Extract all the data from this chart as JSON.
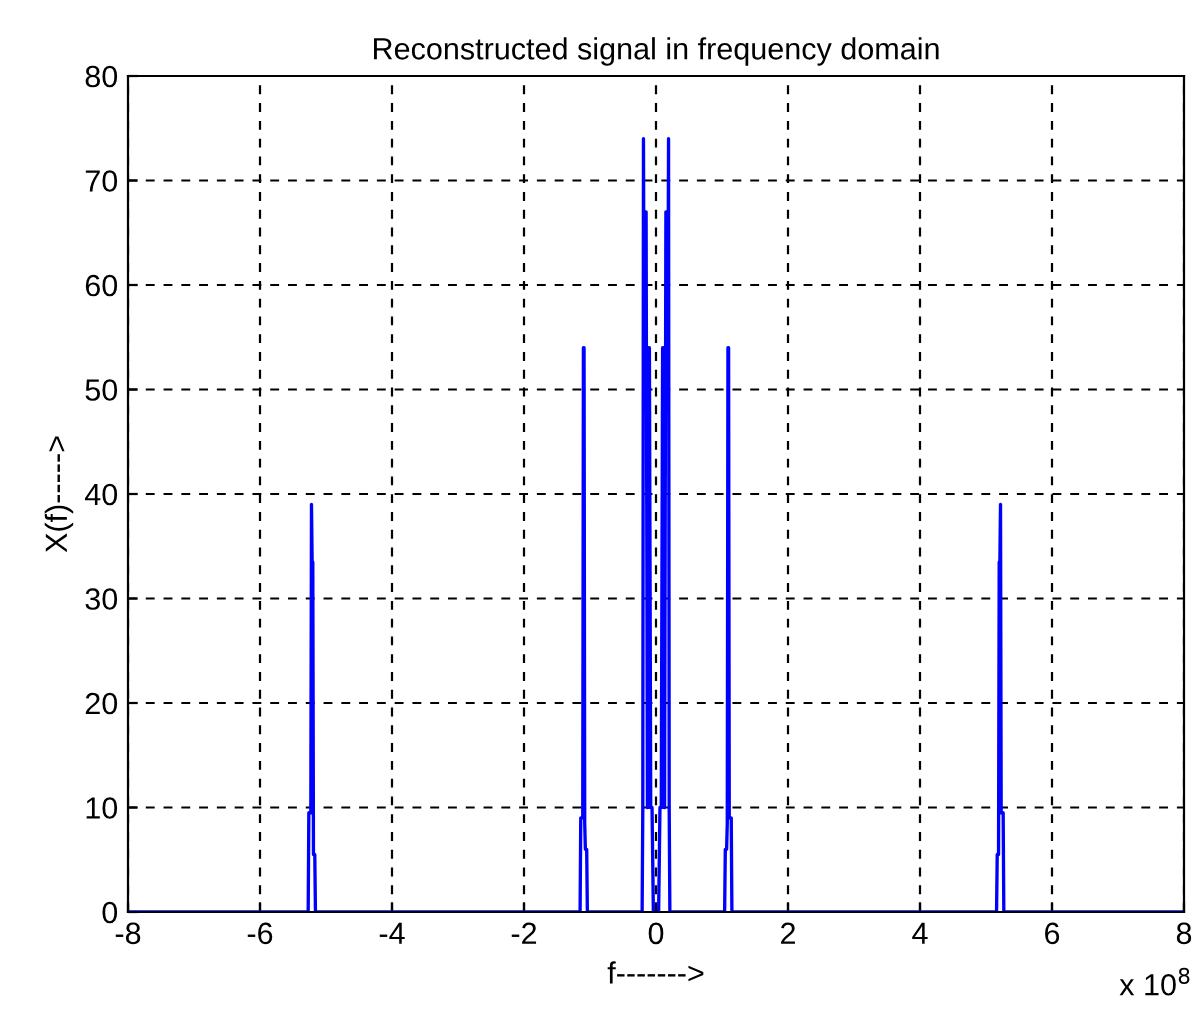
{
  "chart_data": {
    "type": "line",
    "title": "Reconstructed signal in frequency domain",
    "xlabel": "f------->",
    "ylabel": "X(f)----->",
    "annotations": [
      "x 10$^{8}$"
    ],
    "series": [
      {
        "color": "#0000ff",
        "x": [
          -8,
          -5.27,
          -5.26,
          -5.23,
          -5.22,
          -5.21,
          -5.2,
          -5.19,
          -5.17,
          -5.16,
          -1.15,
          -1.14,
          -1.11,
          -1.1,
          -1.09,
          -1.08,
          -1.07,
          -1.05,
          -1.04,
          -0.21,
          -0.2,
          -0.19,
          -0.18,
          -0.17,
          -0.16,
          -0.15,
          -0.13,
          -0.12,
          -0.11,
          -0.1,
          -0.08,
          -0.06,
          -0.04,
          0.04,
          0.06,
          0.08,
          0.1,
          0.11,
          0.12,
          0.13,
          0.15,
          0.16,
          0.17,
          0.18,
          0.19,
          0.2,
          0.21,
          1.04,
          1.05,
          1.07,
          1.08,
          1.09,
          1.1,
          1.11,
          1.14,
          1.15,
          5.16,
          5.17,
          5.19,
          5.2,
          5.21,
          5.22,
          5.23,
          5.26,
          5.27,
          8
        ],
        "values": [
          0,
          0,
          9.5,
          9.5,
          39,
          33.5,
          33.5,
          5.5,
          5.5,
          0,
          0,
          9,
          9,
          54,
          54,
          8.5,
          6,
          6,
          0,
          0,
          10,
          74,
          54,
          54,
          67,
          67,
          10,
          10,
          54,
          54,
          10,
          10,
          0,
          0,
          10,
          10,
          54,
          54,
          10,
          10,
          67,
          67,
          54,
          54,
          74,
          10,
          0,
          0,
          6,
          6,
          8.5,
          54,
          54,
          9,
          9,
          0,
          0,
          5.5,
          5.5,
          33.5,
          33.5,
          39,
          9.5,
          9.5,
          0,
          0
        ]
      }
    ],
    "xlim": [
      -8,
      8
    ],
    "ylim": [
      0,
      80
    ],
    "xticks": [
      -8,
      -6,
      -4,
      -2,
      0,
      2,
      4,
      6,
      8
    ],
    "yticks": [
      0,
      10,
      20,
      30,
      40,
      50,
      60,
      70,
      80
    ],
    "grid": true,
    "line_style": "solid",
    "marker": "none"
  }
}
